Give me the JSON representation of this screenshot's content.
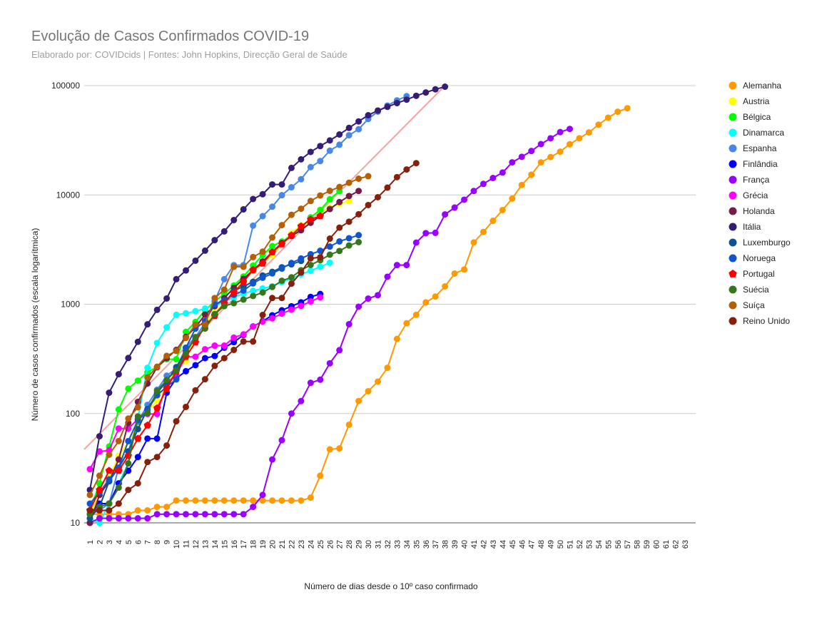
{
  "chart_data": {
    "type": "line",
    "title": "Evolução de Casos Confirmados COVID-19",
    "subtitle": "Elaborado por: COVIDcids | Fontes: John Hopkins, Direcção Geral de Saúde",
    "xlabel": "Número de dias desde o 10º caso confirmado",
    "ylabel": "Número de casos confirmados (escala logarítmica)",
    "y_scale": "log",
    "ylim": [
      10,
      100000
    ],
    "y_ticks": [
      "10",
      "100",
      "1000",
      "10000",
      "100000"
    ],
    "x_ticks": [
      "1",
      "2",
      "3",
      "4",
      "5",
      "6",
      "7",
      "8",
      "9",
      "10",
      "11",
      "12",
      "13",
      "14",
      "15",
      "16",
      "17",
      "18",
      "19",
      "20",
      "21",
      "22",
      "23",
      "24",
      "25",
      "26",
      "27",
      "28",
      "29",
      "30",
      "31",
      "32",
      "33",
      "34",
      "35",
      "36",
      "37",
      "38",
      "39",
      "40",
      "41",
      "42",
      "43",
      "44",
      "45",
      "46",
      "47",
      "48",
      "49",
      "50",
      "51",
      "52",
      "53",
      "54",
      "55",
      "56",
      "57",
      "58",
      "59",
      "60",
      "61",
      "62",
      "63"
    ],
    "grid": "horizontal",
    "legend_position": "right",
    "reference_line": {
      "color": "#f4a3a3",
      "points": [
        [
          1,
          47
        ],
        [
          38,
          100000
        ]
      ]
    },
    "series": [
      {
        "name": "Alemanha",
        "color": "#ff9900",
        "marker": "circle",
        "values": [
          12,
          12,
          12,
          12,
          12,
          13,
          13,
          14,
          14,
          16,
          16,
          16,
          16,
          16,
          16,
          16,
          16,
          16,
          16,
          16,
          16,
          16,
          16,
          17,
          27,
          47,
          48,
          79,
          130,
          160,
          196,
          262,
          482,
          670,
          800,
          1040,
          1176,
          1457,
          1908,
          2078,
          3675,
          4585,
          5795,
          7272,
          9257,
          12327,
          15320,
          19848,
          22213,
          24873,
          29056,
          32986,
          37323,
          43938,
          50871,
          57695,
          62095
        ]
      },
      {
        "name": "Austria",
        "color": "#ffff00",
        "marker": "circle",
        "values": [
          12,
          18,
          26,
          41,
          55,
          79,
          104,
          131,
          182,
          246,
          302,
          504,
          655,
          860,
          1018,
          1332,
          1646,
          2013,
          2388,
          2814,
          3582,
          4474,
          5283,
          5588,
          6909,
          7657,
          8271,
          8788
        ]
      },
      {
        "name": "Bélgica",
        "color": "#00ff00",
        "marker": "circle",
        "values": [
          13,
          23,
          50,
          109,
          169,
          200,
          239,
          267,
          314,
          314,
          559,
          689,
          886,
          1058,
          1243,
          1486,
          1795,
          2257,
          2815,
          3401,
          3743,
          4269,
          4937,
          6235,
          7284,
          9134,
          10836
        ]
      },
      {
        "name": "Dinamarca",
        "color": "#00ffff",
        "marker": "circle",
        "values": [
          11,
          10,
          15,
          23,
          35,
          90,
          262,
          442,
          615,
          801,
          827,
          864,
          914,
          977,
          1057,
          1151,
          1255,
          1326,
          1395,
          1460,
          1591,
          1724,
          1877,
          2023,
          2201,
          2395
        ]
      },
      {
        "name": "Espanha",
        "color": "#4a86e8",
        "marker": "circle",
        "values": [
          12,
          13,
          15,
          32,
          45,
          84,
          120,
          165,
          222,
          259,
          400,
          500,
          673,
          1073,
          1695,
          2277,
          2277,
          5232,
          6391,
          7798,
          9942,
          11748,
          13910,
          17963,
          20410,
          25374,
          28768,
          35136,
          39885,
          49515,
          57786,
          65719,
          73235,
          80110
        ]
      },
      {
        "name": "Finlândia",
        "color": "#0000ff",
        "marker": "circle",
        "values": [
          12,
          15,
          15,
          23,
          30,
          40,
          59,
          59,
          155,
          210,
          244,
          277,
          321,
          336,
          400,
          450,
          523,
          626,
          700,
          792,
          880,
          958,
          1041,
          1167,
          1240
        ]
      },
      {
        "name": "França",
        "color": "#9900ff",
        "marker": "circle",
        "values": [
          10,
          11,
          11,
          11,
          11,
          11,
          11,
          12,
          12,
          12,
          12,
          12,
          12,
          12,
          12,
          12,
          12,
          14,
          18,
          38,
          57,
          100,
          130,
          191,
          204,
          288,
          380,
          656,
          949,
          1126,
          1209,
          1784,
          2281,
          2281,
          3661,
          4469,
          4499,
          6633,
          7652,
          9043,
          10871,
          12612,
          14282,
          16018,
          19856,
          22304,
          25233,
          29155,
          32964,
          37575,
          40174
        ]
      },
      {
        "name": "Grécia",
        "color": "#ff00ff",
        "marker": "circle",
        "values": [
          31,
          45,
          46,
          73,
          73,
          89,
          99,
          99,
          190,
          228,
          331,
          331,
          387,
          418,
          418,
          495,
          530,
          624,
          695,
          743,
          821,
          892,
          966,
          1061,
          1156
        ]
      },
      {
        "name": "Holanda",
        "color": "#741b47",
        "marker": "circle",
        "values": [
          10,
          18,
          24,
          38,
          82,
          128,
          188,
          265,
          321,
          382,
          503,
          614,
          804,
          959,
          1135,
          1413,
          1705,
          2051,
          2460,
          2994,
          3631,
          4204,
          4749,
          5560,
          6412,
          7431,
          8603,
          9762,
          10866
        ]
      },
      {
        "name": "Itália",
        "color": "#351c75",
        "marker": "circle",
        "values": [
          20,
          62,
          155,
          229,
          322,
          453,
          655,
          888,
          1128,
          1694,
          2036,
          2502,
          3089,
          3858,
          4636,
          5883,
          7375,
          9172,
          10149,
          12462,
          12462,
          17660,
          21157,
          24747,
          27980,
          31506,
          35713,
          41035,
          47021,
          53578,
          59138,
          63927,
          69176,
          74386,
          80589,
          86498,
          92472,
          97689
        ]
      },
      {
        "name": "Luxemburgo",
        "color": "#0b5394",
        "marker": "circle",
        "values": [
          11,
          14,
          24,
          32,
          45,
          72,
          110,
          154,
          198,
          266,
          374,
          484,
          606,
          808,
          1009,
          1326,
          1453,
          1605,
          1831,
          1977,
          2178,
          2319,
          2487
        ]
      },
      {
        "name": "Noruega",
        "color": "#1155cc",
        "marker": "circle",
        "values": [
          15,
          19,
          25,
          32,
          56,
          87,
          108,
          147,
          176,
          205,
          400,
          598,
          702,
          996,
          1090,
          1221,
          1333,
          1550,
          1746,
          1914,
          2118,
          2385,
          2621,
          2866,
          3084,
          3369,
          3755,
          4015,
          4284
        ]
      },
      {
        "name": "Portugal",
        "color": "#ff0000",
        "marker": "pentagon",
        "values": [
          13,
          20,
          30,
          30,
          41,
          59,
          78,
          112,
          169,
          245,
          331,
          448,
          642,
          785,
          1020,
          1280,
          1600,
          2060,
          2362,
          2995,
          3544,
          4268,
          5170,
          5962,
          6408
        ]
      },
      {
        "name": "Suécia",
        "color": "#38761d",
        "marker": "circle",
        "values": [
          12,
          14,
          15,
          21,
          35,
          94,
          101,
          161,
          203,
          248,
          355,
          500,
          599,
          814,
          961,
          1022,
          1103,
          1190,
          1279,
          1439,
          1639,
          1763,
          2046,
          2286,
          2526,
          2840,
          3069,
          3447,
          3700
        ]
      },
      {
        "name": "Suíça",
        "color": "#b45f06",
        "marker": "circle",
        "values": [
          18,
          27,
          42,
          56,
          90,
          114,
          214,
          268,
          337,
          374,
          491,
          652,
          652,
          1139,
          1359,
          2200,
          2200,
          2700,
          3028,
          4075,
          5294,
          6575,
          7474,
          8795,
          9877,
          10897,
          11811,
          12928,
          14076,
          14829
        ]
      },
      {
        "name": "Reino Unido",
        "color": "#85200c",
        "marker": "circle",
        "values": [
          13,
          13,
          13,
          15,
          20,
          23,
          36,
          40,
          51,
          85,
          115,
          163,
          206,
          273,
          321,
          382,
          456,
          456,
          798,
          1140,
          1140,
          1543,
          1950,
          2626,
          2689,
          3983,
          5018,
          5683,
          6650,
          8077,
          9529,
          11658,
          14543,
          17089,
          19522
        ]
      }
    ]
  }
}
